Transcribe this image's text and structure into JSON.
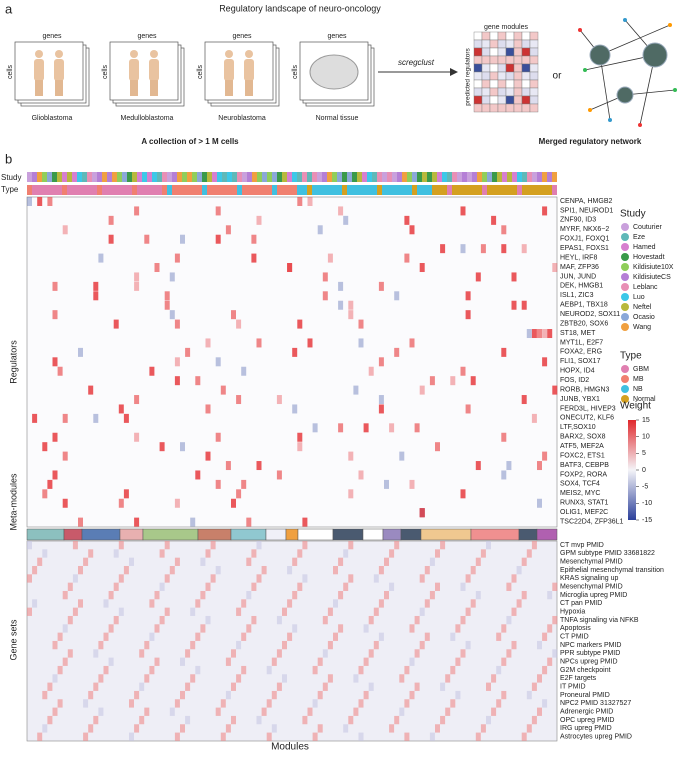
{
  "figure": {
    "title": "Regulatory landscape of neuro-oncology",
    "panel_a": {
      "label": "a",
      "axis_genes": "genes",
      "axis_cells": "cells",
      "datasets": [
        "Glioblastoma",
        "Medulloblastoma",
        "Neuroblastoma",
        "Normal tissue"
      ],
      "method": "scregclust",
      "matrix_top": "gene modules",
      "matrix_side": "predicted regulators",
      "or": "or",
      "collection": "A collection of > 1 M cells",
      "network": "Merged regulatory network"
    },
    "panel_b": {
      "label": "b",
      "study_bar": "Study",
      "type_bar": "Type",
      "regulators_axis": "Regulators",
      "meta_axis": "Meta-modules",
      "genesets_axis": "Gene sets",
      "x_axis": "Modules",
      "regulators": [
        "CENPA, HMGB2",
        "SPI1, NEUROD1",
        "ZNF90, ID3",
        "MYRF, NKX6−2",
        "FOXJ1, FOXQ1",
        "EPAS1, FOXS1",
        "HEYL, IRF8",
        "MAF, ZFP36",
        "JUN, JUND",
        "DEK, HMGB1",
        "ISL1, ZIC3",
        "AEBP1, TBX18",
        "NEUROD2, SOX11",
        "ZBTB20, SOX6",
        "ST18, MET",
        "MYT1L, E2F7",
        "FOXA2, ERG",
        "FLI1, SOX17",
        "HOPX, ID4",
        "FOS, ID2",
        "RORB, HMGN3",
        "JUNB, YBX1",
        "FERD3L, HIVEP3",
        "ONECUT2, KLF6",
        "LTF,SOX10",
        "BARX2, SOX8",
        "ATF5, MEF2A",
        "FOXC2, ETS1",
        "BATF3, CEBPB",
        "FOXP2, RORA",
        "SOX4, TCF4",
        "MEIS2, MYC",
        "RUNX3, STAT1",
        "OLIG1, MEF2C",
        "TSC22D4, ZFP36L1"
      ],
      "gene_sets": [
        "CT mvp PMID",
        "GPM subtype PMID 33681822",
        "Mesenchymal PMID",
        "Epithelial mesenchymal transition",
        "KRAS signaling up",
        "Mesenchymal PMID",
        "Microglia upreg PMID",
        "CT pan PMID",
        "Hypoxia",
        "TNFA signaling via NFKB",
        "Apoptosis",
        "CT PMID",
        "NPC markers PMID",
        "PPR subtype PMID",
        "NPCs upreg PMID",
        "G2M checkpoint",
        "E2F targets",
        "IT PMID",
        "Proneural PMID",
        "NPC2 PMID 31327527",
        "Adrenergic PMID",
        "OPC upreg PMID",
        "IRG upreg PMID",
        "Astrocytes upreg PMID"
      ],
      "study_legend": {
        "title": "Study",
        "items": [
          {
            "name": "Couturier",
            "color": "#c9a0dc"
          },
          {
            "name": "Eze",
            "color": "#5fb8b8"
          },
          {
            "name": "Hamed",
            "color": "#d67fcf"
          },
          {
            "name": "Hovestadt",
            "color": "#3a9a4a"
          },
          {
            "name": "Kildisiute10X",
            "color": "#8fce5a"
          },
          {
            "name": "KildisiuteCS",
            "color": "#b57fd6"
          },
          {
            "name": "Leblanc",
            "color": "#e88fb5"
          },
          {
            "name": "Luo",
            "color": "#3cc8e8"
          },
          {
            "name": "Neftel",
            "color": "#b8b83c"
          },
          {
            "name": "Ocasio",
            "color": "#8aa8d8"
          },
          {
            "name": "Wang",
            "color": "#f0a040"
          }
        ]
      },
      "type_legend": {
        "title": "Type",
        "items": [
          {
            "name": "GBM",
            "color": "#e07fb0"
          },
          {
            "name": "MB",
            "color": "#f08070"
          },
          {
            "name": "NB",
            "color": "#40c0e0"
          },
          {
            "name": "Normal",
            "color": "#d4a020"
          }
        ]
      },
      "weight_legend": {
        "title": "Weight",
        "range": [
          -15,
          15
        ],
        "ticks": [
          15,
          10,
          5,
          0,
          -5,
          -10,
          -15
        ]
      }
    }
  }
}
